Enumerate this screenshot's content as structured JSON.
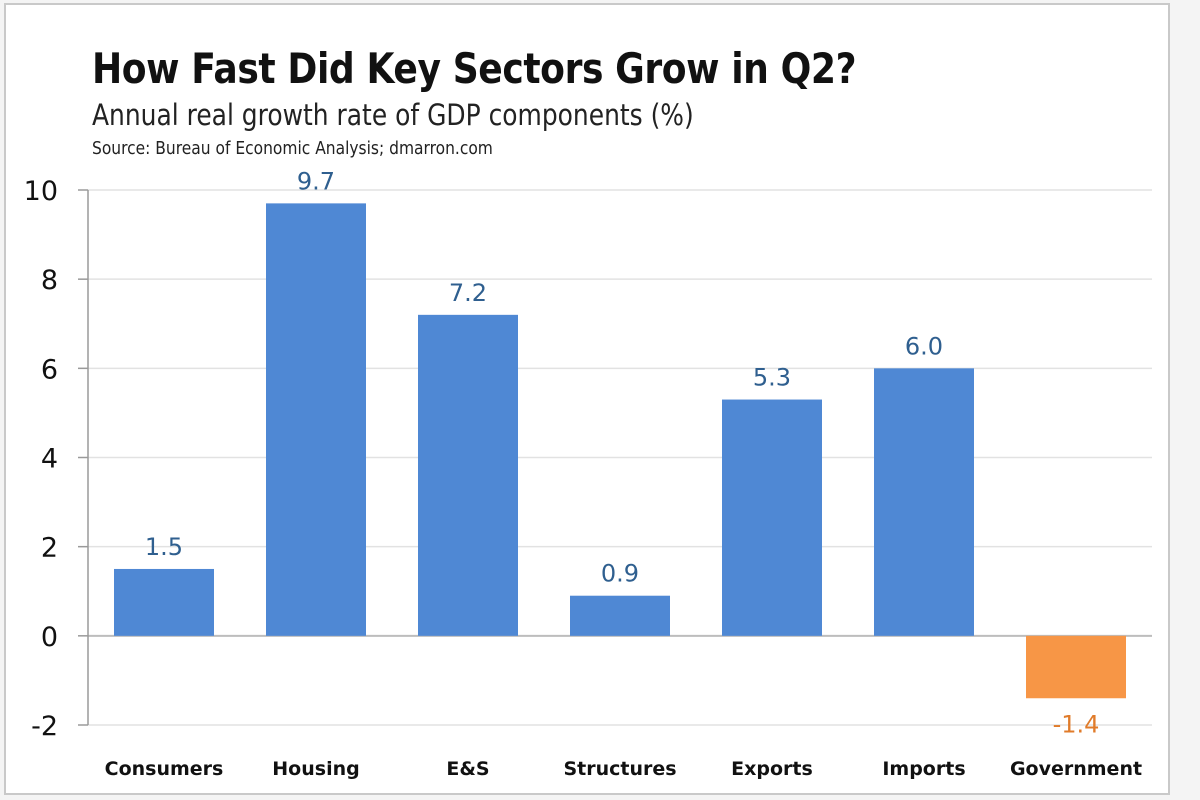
{
  "chart_data": {
    "type": "bar",
    "title": "How Fast Did Key Sectors Grow in Q2?",
    "subtitle": "Annual real growth rate of GDP components (%)",
    "source": "Source: Bureau of Economic Analysis; dmarron.com",
    "xlabel": "",
    "ylabel": "",
    "categories": [
      "Consumers",
      "Housing",
      "E&S",
      "Structures",
      "Exports",
      "Imports",
      "Government"
    ],
    "values": [
      1.5,
      9.7,
      7.2,
      0.9,
      5.3,
      6.0,
      -1.4
    ],
    "value_labels": [
      "1.5",
      "9.7",
      "7.2",
      "0.9",
      "5.3",
      "6.0",
      "-1.4"
    ],
    "ylim": [
      -2,
      10
    ],
    "yticks": [
      -2,
      0,
      2,
      4,
      6,
      8,
      10
    ],
    "ytick_labels": [
      "-2",
      "0",
      "2",
      "4",
      "6",
      "8",
      "10"
    ],
    "grid": true,
    "legend": "none",
    "colors": {
      "positive": "#4f88d4",
      "negative": "#f79646",
      "positive_label": "#2f5f8f",
      "negative_label": "#e07b2a"
    }
  }
}
